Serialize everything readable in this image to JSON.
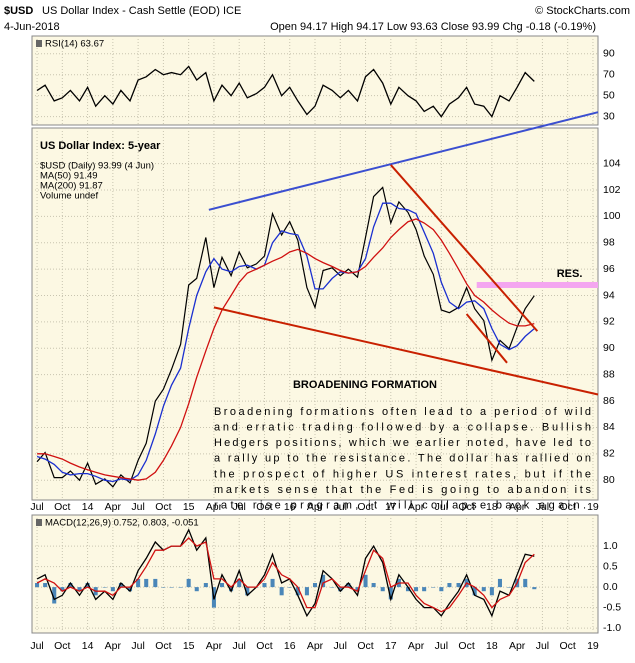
{
  "header": {
    "symbol": "$USD",
    "name": "US Dollar Index - Cash Settle (EOD) ICE",
    "credit": "© StockCharts.com",
    "date": "4-Jun-2018",
    "quote": "Open 94.17  High 94.17  Low 93.63  Close 93.99  Chg -0.18 (-0.19%)"
  },
  "chart_data": [
    {
      "type": "line",
      "label": "RSI(14) 63.67",
      "xlim": [
        2013.45,
        2019.05
      ],
      "xticks": [
        {
          "value": 2013.5,
          "label": "Jul"
        },
        {
          "value": 2013.75,
          "label": "Oct"
        },
        {
          "value": 2014,
          "label": "14"
        },
        {
          "value": 2014.25,
          "label": "Apr"
        },
        {
          "value": 2014.5,
          "label": "Jul"
        },
        {
          "value": 2014.75,
          "label": "Oct"
        },
        {
          "value": 2015,
          "label": "15"
        },
        {
          "value": 2015.25,
          "label": "Apr"
        },
        {
          "value": 2015.5,
          "label": "Jul"
        },
        {
          "value": 2015.75,
          "label": "Oct"
        },
        {
          "value": 2016,
          "label": "16"
        },
        {
          "value": 2016.25,
          "label": "Apr"
        },
        {
          "value": 2016.5,
          "label": "Jul"
        },
        {
          "value": 2016.75,
          "label": "Oct"
        },
        {
          "value": 2017,
          "label": "17"
        },
        {
          "value": 2017.25,
          "label": "Apr"
        },
        {
          "value": 2017.5,
          "label": "Jul"
        },
        {
          "value": 2017.75,
          "label": "Oct"
        },
        {
          "value": 2018,
          "label": "18"
        },
        {
          "value": 2018.25,
          "label": "Apr"
        },
        {
          "value": 2018.5,
          "label": "Jul"
        },
        {
          "value": 2018.75,
          "label": "Oct"
        },
        {
          "value": 2019,
          "label": "19"
        }
      ],
      "ylim": [
        22,
        107
      ],
      "yticks": [
        30,
        50,
        70,
        90
      ],
      "grid": true,
      "x": [
        2013.5,
        2013.58,
        2013.67,
        2013.75,
        2013.83,
        2013.92,
        2014,
        2014.08,
        2014.17,
        2014.25,
        2014.33,
        2014.42,
        2014.5,
        2014.58,
        2014.67,
        2014.75,
        2014.83,
        2014.92,
        2015,
        2015.08,
        2015.17,
        2015.25,
        2015.33,
        2015.42,
        2015.5,
        2015.58,
        2015.67,
        2015.75,
        2015.83,
        2015.92,
        2016,
        2016.08,
        2016.17,
        2016.25,
        2016.33,
        2016.42,
        2016.5,
        2016.58,
        2016.67,
        2016.75,
        2016.83,
        2016.92,
        2017,
        2017.08,
        2017.17,
        2017.25,
        2017.33,
        2017.42,
        2017.5,
        2017.58,
        2017.67,
        2017.75,
        2017.83,
        2017.92,
        2018,
        2018.08,
        2018.17,
        2018.25,
        2018.33,
        2018.42
      ],
      "series": [
        {
          "color": "#000000",
          "values": [
            55,
            60,
            45,
            48,
            55,
            45,
            58,
            40,
            50,
            42,
            55,
            45,
            65,
            68,
            75,
            70,
            72,
            70,
            78,
            65,
            72,
            45,
            60,
            50,
            62,
            48,
            52,
            58,
            70,
            50,
            58,
            45,
            32,
            40,
            60,
            55,
            48,
            55,
            45,
            68,
            75,
            62,
            42,
            58,
            50,
            45,
            35,
            40,
            30,
            42,
            48,
            58,
            42,
            40,
            30,
            50,
            45,
            58,
            72,
            63.67
          ]
        }
      ]
    },
    {
      "type": "line",
      "title": "US Dollar Index: 5-year",
      "xlim": [
        2013.45,
        2019.05
      ],
      "xticks": [
        {
          "value": 2013.5,
          "label": "Jul"
        },
        {
          "value": 2013.75,
          "label": "Oct"
        },
        {
          "value": 2014,
          "label": "14"
        },
        {
          "value": 2014.25,
          "label": "Apr"
        },
        {
          "value": 2014.5,
          "label": "Jul"
        },
        {
          "value": 2014.75,
          "label": "Oct"
        },
        {
          "value": 2015,
          "label": "15"
        },
        {
          "value": 2015.25,
          "label": "Apr"
        },
        {
          "value": 2015.5,
          "label": "Jul"
        },
        {
          "value": 2015.75,
          "label": "Oct"
        },
        {
          "value": 2016,
          "label": "16"
        },
        {
          "value": 2016.25,
          "label": "Apr"
        },
        {
          "value": 2016.5,
          "label": "Jul"
        },
        {
          "value": 2016.75,
          "label": "Oct"
        },
        {
          "value": 2017,
          "label": "17"
        },
        {
          "value": 2017.25,
          "label": "Apr"
        },
        {
          "value": 2017.5,
          "label": "Jul"
        },
        {
          "value": 2017.75,
          "label": "Oct"
        },
        {
          "value": 2018,
          "label": "18"
        },
        {
          "value": 2018.25,
          "label": "Apr"
        },
        {
          "value": 2018.5,
          "label": "Jul"
        },
        {
          "value": 2018.75,
          "label": "Oct"
        },
        {
          "value": 2019,
          "label": "19"
        }
      ],
      "ylim": [
        78.5,
        106.7
      ],
      "yticks": [
        80,
        82,
        84,
        86,
        88,
        90,
        92,
        94,
        96,
        98,
        100,
        102,
        104
      ],
      "grid": true,
      "x": [
        2013.5,
        2013.58,
        2013.67,
        2013.75,
        2013.83,
        2013.92,
        2014,
        2014.08,
        2014.17,
        2014.25,
        2014.33,
        2014.42,
        2014.5,
        2014.58,
        2014.67,
        2014.75,
        2014.83,
        2014.92,
        2015,
        2015.08,
        2015.17,
        2015.25,
        2015.33,
        2015.42,
        2015.5,
        2015.58,
        2015.67,
        2015.75,
        2015.83,
        2015.92,
        2016,
        2016.08,
        2016.17,
        2016.25,
        2016.33,
        2016.42,
        2016.5,
        2016.58,
        2016.67,
        2016.75,
        2016.83,
        2016.92,
        2017,
        2017.08,
        2017.17,
        2017.25,
        2017.33,
        2017.42,
        2017.5,
        2017.58,
        2017.67,
        2017.75,
        2017.83,
        2017.92,
        2018,
        2018.08,
        2018.17,
        2018.25,
        2018.33,
        2018.42
      ],
      "series": [
        {
          "name": "$USD (Daily) 93.99 (4 Jun)",
          "color": "#000000",
          "values": [
            81.4,
            82.1,
            80.2,
            80.2,
            80.7,
            80.0,
            81.3,
            79.7,
            80.1,
            79.5,
            80.4,
            79.8,
            81.5,
            82.8,
            86.0,
            86.9,
            88.4,
            90.3,
            94.8,
            95.3,
            98.4,
            94.6,
            96.9,
            95.5,
            97.3,
            96.1,
            96.4,
            97.0,
            100.2,
            98.6,
            99.6,
            98.2,
            94.6,
            93.1,
            95.9,
            96.1,
            95.5,
            96.0,
            95.4,
            98.4,
            101.5,
            102.2,
            99.5,
            101.1,
            100.3,
            99.0,
            97.0,
            95.6,
            92.9,
            92.7,
            93.1,
            94.6,
            93.0,
            92.1,
            89.1,
            90.6,
            89.97,
            91.6,
            93.0,
            93.99
          ]
        },
        {
          "name": "MA(50) 91.49",
          "color": "#1a2fd0",
          "values": [
            81.8,
            81.6,
            81.2,
            80.6,
            80.4,
            80.5,
            80.5,
            80.3,
            80.0,
            79.9,
            80.1,
            80.0,
            80.4,
            81.5,
            83.5,
            85.6,
            87.2,
            88.5,
            91.5,
            94.0,
            95.8,
            96.8,
            96.0,
            95.8,
            96.2,
            96.3,
            96.0,
            96.3,
            98.0,
            98.9,
            98.7,
            98.6,
            97.0,
            94.5,
            94.5,
            95.3,
            95.8,
            95.7,
            95.8,
            96.8,
            99.2,
            101.0,
            101.0,
            100.6,
            100.5,
            100.2,
            98.8,
            97.2,
            95.0,
            93.5,
            93.0,
            93.5,
            93.6,
            93.0,
            91.5,
            90.3,
            89.9,
            90.2,
            90.9,
            91.49
          ]
        },
        {
          "name": "MA(200) 91.87",
          "color": "#d01010",
          "values": [
            82.0,
            82.0,
            81.8,
            81.6,
            81.3,
            81.0,
            80.8,
            80.6,
            80.4,
            80.3,
            80.2,
            80.1,
            80.0,
            80.1,
            80.6,
            81.5,
            82.6,
            84.0,
            85.8,
            87.8,
            89.8,
            91.5,
            92.9,
            94.0,
            95.0,
            95.7,
            96.0,
            96.3,
            96.6,
            96.9,
            97.3,
            97.5,
            97.2,
            96.8,
            96.5,
            96.2,
            95.9,
            95.7,
            95.8,
            96.2,
            96.9,
            97.6,
            98.4,
            99.0,
            99.6,
            99.8,
            99.5,
            99.0,
            98.2,
            97.2,
            96.0,
            94.9,
            94.0,
            93.5,
            92.9,
            92.4,
            91.9,
            91.7,
            91.7,
            91.87
          ]
        }
      ],
      "volume_note": "Volume undef",
      "trendlines": [
        {
          "color": "#3b4fd0",
          "points": [
            [
              2015.2,
              100.5
            ],
            [
              2019.05,
              107.9
            ]
          ]
        },
        {
          "color": "#c82000",
          "points": [
            [
              2015.25,
              93.1
            ],
            [
              2019.05,
              86.5
            ]
          ]
        },
        {
          "color": "#c82000",
          "points": [
            [
              2017.0,
              103.9
            ],
            [
              2018.45,
              91.3
            ]
          ]
        },
        {
          "color": "#c82000",
          "points": [
            [
              2017.75,
              92.6
            ],
            [
              2018.15,
              88.9
            ]
          ]
        }
      ],
      "resistance": {
        "label": "RES.",
        "color": "#f4a6f0",
        "value": 94.8,
        "from": 2017.85,
        "to": 2019.05
      },
      "annotation_title": "BROADENING FORMATION",
      "annotation_lines": [
        "Broadening formations often lead to a period of wild",
        "and erratic trading followed by a collapse. Bullish",
        "Hedgers positions, which we earlier noted, have led to",
        "a rally up to the resistance. The dollar has rallied on",
        "the prospect of higher US interest rates, but if the",
        "markets sense that the Fed is going to abandon its",
        "rate rise program, it will collapse back again."
      ]
    },
    {
      "type": "line",
      "label": "MACD(12,26,9) 0.752, 0.803, -0.051",
      "xlim": [
        2013.45,
        2019.05
      ],
      "xticks": [
        {
          "value": 2013.5,
          "label": "Jul"
        },
        {
          "value": 2013.75,
          "label": "Oct"
        },
        {
          "value": 2014,
          "label": "14"
        },
        {
          "value": 2014.25,
          "label": "Apr"
        },
        {
          "value": 2014.5,
          "label": "Jul"
        },
        {
          "value": 2014.75,
          "label": "Oct"
        },
        {
          "value": 2015,
          "label": "15"
        },
        {
          "value": 2015.25,
          "label": "Apr"
        },
        {
          "value": 2015.5,
          "label": "Jul"
        },
        {
          "value": 2015.75,
          "label": "Oct"
        },
        {
          "value": 2016,
          "label": "16"
        },
        {
          "value": 2016.25,
          "label": "Apr"
        },
        {
          "value": 2016.5,
          "label": "Jul"
        },
        {
          "value": 2016.75,
          "label": "Oct"
        },
        {
          "value": 2017,
          "label": "17"
        },
        {
          "value": 2017.25,
          "label": "Apr"
        },
        {
          "value": 2017.5,
          "label": "Jul"
        },
        {
          "value": 2017.75,
          "label": "Oct"
        },
        {
          "value": 2018,
          "label": "18"
        },
        {
          "value": 2018.25,
          "label": "Apr"
        },
        {
          "value": 2018.5,
          "label": "Jul"
        },
        {
          "value": 2018.75,
          "label": "Oct"
        },
        {
          "value": 2019,
          "label": "19"
        }
      ],
      "ylim": [
        -1.12,
        1.76
      ],
      "yticks": [
        {
          "value": 1,
          "label": "1.0"
        },
        0.5,
        {
          "value": 0,
          "label": "0.0"
        },
        -0.5,
        {
          "value": -1,
          "label": "-1.0"
        }
      ],
      "grid": true,
      "x": [
        2013.5,
        2013.58,
        2013.67,
        2013.75,
        2013.83,
        2013.92,
        2014,
        2014.08,
        2014.17,
        2014.25,
        2014.33,
        2014.42,
        2014.5,
        2014.58,
        2014.67,
        2014.75,
        2014.83,
        2014.92,
        2015,
        2015.08,
        2015.17,
        2015.25,
        2015.33,
        2015.42,
        2015.5,
        2015.58,
        2015.67,
        2015.75,
        2015.83,
        2015.92,
        2016,
        2016.08,
        2016.17,
        2016.25,
        2016.33,
        2016.42,
        2016.5,
        2016.58,
        2016.67,
        2016.75,
        2016.83,
        2016.92,
        2017,
        2017.08,
        2017.17,
        2017.25,
        2017.33,
        2017.42,
        2017.5,
        2017.58,
        2017.67,
        2017.75,
        2017.83,
        2017.92,
        2018,
        2018.08,
        2018.17,
        2018.25,
        2018.33,
        2018.42
      ],
      "series": [
        {
          "color": "#4a86b8",
          "bars": true,
          "values": [
            0.1,
            0.1,
            -0.4,
            -0.1,
            0.1,
            -0.1,
            0.1,
            -0.2,
            0.0,
            -0.1,
            0.1,
            -0.1,
            0.2,
            0.2,
            0.2,
            0.0,
            0.0,
            0.0,
            0.2,
            -0.1,
            0.1,
            -0.5,
            0.1,
            -0.1,
            0.2,
            -0.2,
            0.0,
            0.1,
            0.2,
            -0.2,
            0.0,
            -0.2,
            -0.2,
            0.1,
            0.3,
            0.0,
            -0.1,
            0.1,
            -0.1,
            0.3,
            0.1,
            -0.1,
            -0.3,
            0.2,
            -0.1,
            -0.1,
            -0.1,
            0.0,
            -0.1,
            0.1,
            0.1,
            0.2,
            -0.2,
            -0.1,
            -0.2,
            0.2,
            0.0,
            0.2,
            0.2,
            -0.051
          ]
        },
        {
          "color": "#000000",
          "values": [
            0.2,
            0.3,
            -0.3,
            -0.2,
            0.1,
            -0.2,
            0.1,
            -0.3,
            -0.1,
            -0.3,
            0.1,
            -0.1,
            0.4,
            0.7,
            1.1,
            0.9,
            1.0,
            1.0,
            1.4,
            0.9,
            1.2,
            -0.3,
            0.3,
            -0.1,
            0.4,
            -0.2,
            0.0,
            0.3,
            0.8,
            0.1,
            0.2,
            -0.2,
            -0.7,
            -0.4,
            0.4,
            0.2,
            -0.1,
            0.1,
            -0.2,
            0.7,
            1.0,
            0.6,
            -0.3,
            0.3,
            0.0,
            -0.3,
            -0.5,
            -0.5,
            -0.7,
            -0.4,
            -0.1,
            0.3,
            -0.2,
            -0.3,
            -0.7,
            -0.1,
            -0.2,
            0.3,
            0.8,
            0.752
          ]
        },
        {
          "color": "#d01010",
          "values": [
            0.1,
            0.2,
            0.1,
            -0.1,
            0.0,
            -0.1,
            0.0,
            -0.1,
            -0.1,
            -0.2,
            0.0,
            0.0,
            0.2,
            0.5,
            0.9,
            0.9,
            1.0,
            1.0,
            1.2,
            1.0,
            1.1,
            0.2,
            0.2,
            0.0,
            0.2,
            0.0,
            0.0,
            0.2,
            0.6,
            0.3,
            0.2,
            0.0,
            -0.5,
            -0.5,
            0.1,
            0.2,
            0.0,
            0.0,
            -0.1,
            0.4,
            0.9,
            0.7,
            0.0,
            0.1,
            0.1,
            -0.2,
            -0.4,
            -0.5,
            -0.6,
            -0.5,
            -0.2,
            0.1,
            0.0,
            -0.2,
            -0.5,
            -0.3,
            -0.2,
            0.1,
            0.6,
            0.803
          ]
        }
      ]
    }
  ]
}
